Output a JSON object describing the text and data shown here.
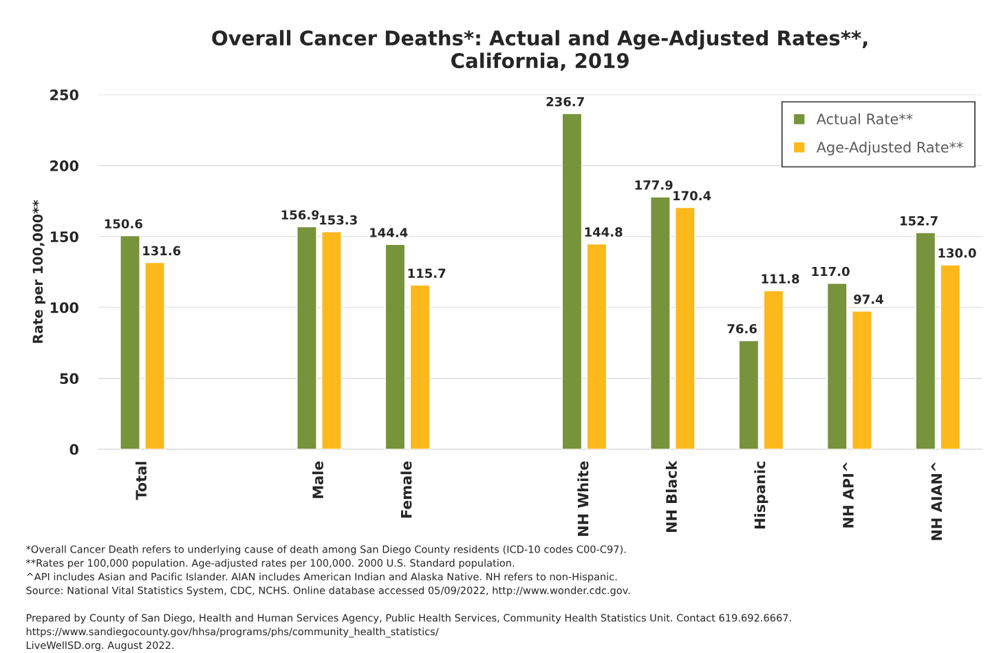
{
  "chart_data": {
    "type": "bar",
    "title": "Overall Cancer Deaths*: Actual and Age-Adjusted Rates**,\nCalifornia, 2019",
    "ylabel": "Rate per 100,000**",
    "categories": [
      "Total",
      null,
      "Male",
      "Female",
      null,
      "NH White",
      "NH Black",
      "Hispanic",
      "NH API^",
      "NH AIAN^"
    ],
    "series": [
      {
        "name": "Actual Rate**",
        "color": "#77933c",
        "values": [
          150.6,
          null,
          156.9,
          144.4,
          null,
          236.7,
          177.9,
          76.6,
          117.0,
          152.7
        ],
        "value_labels": [
          "150.6",
          null,
          "156.9",
          "144.4",
          null,
          "236.7",
          "177.9",
          "76.6",
          "117.0",
          "152.7"
        ]
      },
      {
        "name": "Age-Adjusted Rate**",
        "color": "#fdb91c",
        "values": [
          131.6,
          null,
          153.3,
          115.7,
          null,
          144.8,
          170.4,
          111.8,
          97.4,
          130.0
        ],
        "value_labels": [
          "131.6",
          null,
          "153.3",
          "115.7",
          null,
          "144.8",
          "170.4",
          "111.8",
          "97.4",
          "130.0"
        ]
      }
    ],
    "ylim": [
      0,
      250
    ],
    "yticks": [
      0,
      50,
      100,
      150,
      200,
      250
    ],
    "grid": "y",
    "legend": "top right",
    "annotations": [
      "*Overall Cancer Death refers to underlying cause of death among San Diego County residents (ICD-10 codes C00-C97).",
      "**Rates per 100,000 population. Age-adjusted rates per 100,000. 2000 U.S. Standard population.",
      "^API includes Asian and Pacific Islander. AIAN includes American Indian and Alaska Native. NH refers to non-Hispanic.",
      "Source: National Vital Statistics System, CDC, NCHS. Online database accessed 05/09/2022, http://www.wonder.cdc.gov.",
      "Prepared by County of San Diego, Health and Human Services Agency, Public Health Services, Community Health Statistics Unit. Contact 619.692.6667.",
      "https://www.sandiegocounty.gov/hhsa/programs/phs/community_health_statistics/",
      "LiveWellSD.org. August 2022."
    ]
  }
}
